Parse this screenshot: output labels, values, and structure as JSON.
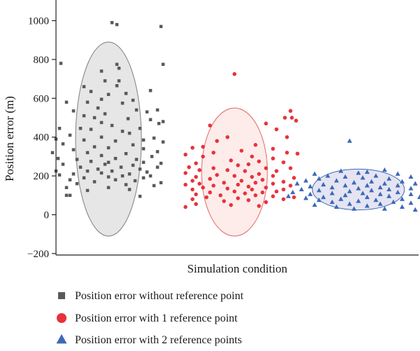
{
  "chart_data": {
    "type": "scatter",
    "title": "",
    "xlabel": "Simulation condition",
    "ylabel": "Position error (m)",
    "ylim": [
      -200,
      1050
    ],
    "yticks": [
      -200,
      0,
      200,
      400,
      600,
      800,
      1000
    ],
    "grid": false,
    "legend_position": "bottom",
    "series": [
      {
        "name": "Position error without reference point",
        "marker": "square",
        "color": "#595959",
        "ellipse": {
          "center": [
            0.0,
            390
          ],
          "radius_x": 0.47,
          "radius_y": 500,
          "fill": "#e6e6e6",
          "stroke": "#7f7f7f"
        },
        "points": [
          [
            0.05,
            990
          ],
          [
            0.12,
            980
          ],
          [
            0.75,
            970
          ],
          [
            -0.68,
            780
          ],
          [
            0.78,
            775
          ],
          [
            0.12,
            775
          ],
          [
            0.15,
            755
          ],
          [
            -0.1,
            740
          ],
          [
            -0.05,
            690
          ],
          [
            0.15,
            690
          ],
          [
            -0.35,
            660
          ],
          [
            0.12,
            665
          ],
          [
            0.6,
            640
          ],
          [
            -0.25,
            635
          ],
          [
            0.0,
            620
          ],
          [
            0.25,
            625
          ],
          [
            -0.1,
            595
          ],
          [
            0.35,
            590
          ],
          [
            -0.6,
            580
          ],
          [
            -0.3,
            580
          ],
          [
            0.2,
            575
          ],
          [
            -0.15,
            550
          ],
          [
            0.4,
            540
          ],
          [
            -0.5,
            535
          ],
          [
            -0.05,
            520
          ],
          [
            0.55,
            530
          ],
          [
            0.7,
            540
          ],
          [
            -0.35,
            510
          ],
          [
            -0.2,
            500
          ],
          [
            0.6,
            490
          ],
          [
            0.28,
            495
          ],
          [
            -0.1,
            475
          ],
          [
            0.78,
            480
          ],
          [
            0.05,
            460
          ],
          [
            0.72,
            470
          ],
          [
            -0.7,
            445
          ],
          [
            -0.4,
            445
          ],
          [
            0.45,
            445
          ],
          [
            -0.25,
            440
          ],
          [
            0.2,
            430
          ],
          [
            -0.55,
            410
          ],
          [
            0.3,
            420
          ],
          [
            -0.1,
            400
          ],
          [
            0.65,
            395
          ],
          [
            -0.75,
            390
          ],
          [
            -0.35,
            385
          ],
          [
            0.1,
            380
          ],
          [
            0.5,
            385
          ],
          [
            0.78,
            375
          ],
          [
            -0.65,
            365
          ],
          [
            0.35,
            360
          ],
          [
            -0.2,
            350
          ],
          [
            0.0,
            345
          ],
          [
            -0.5,
            335
          ],
          [
            0.5,
            340
          ],
          [
            0.7,
            325
          ],
          [
            -0.8,
            320
          ],
          [
            -0.3,
            320
          ],
          [
            0.25,
            315
          ],
          [
            -0.1,
            305
          ],
          [
            0.62,
            300
          ],
          [
            -0.72,
            290
          ],
          [
            0.1,
            290
          ],
          [
            0.4,
            285
          ],
          [
            -0.45,
            285
          ],
          [
            -0.25,
            275
          ],
          [
            0.0,
            270
          ],
          [
            0.5,
            270
          ],
          [
            0.75,
            265
          ],
          [
            -0.65,
            260
          ],
          [
            -0.05,
            260
          ],
          [
            0.35,
            255
          ],
          [
            -0.4,
            245
          ],
          [
            0.18,
            245
          ],
          [
            0.7,
            245
          ],
          [
            -0.15,
            235
          ],
          [
            0.45,
            235
          ],
          [
            -0.75,
            225
          ],
          [
            -0.3,
            225
          ],
          [
            0.05,
            225
          ],
          [
            0.55,
            220
          ],
          [
            -0.5,
            210
          ],
          [
            -0.1,
            215
          ],
          [
            0.3,
            210
          ],
          [
            -0.7,
            205
          ],
          [
            0.2,
            200
          ],
          [
            0.6,
            200
          ],
          [
            -0.35,
            190
          ],
          [
            0.0,
            195
          ],
          [
            0.5,
            190
          ],
          [
            -0.55,
            180
          ],
          [
            0.1,
            180
          ],
          [
            0.38,
            175
          ],
          [
            -0.2,
            170
          ],
          [
            0.75,
            165
          ],
          [
            -0.45,
            160
          ],
          [
            0.25,
            155
          ],
          [
            0.65,
            150
          ],
          [
            -0.6,
            140
          ],
          [
            0.0,
            140
          ],
          [
            -0.3,
            125
          ],
          [
            0.3,
            130
          ],
          [
            -0.6,
            100
          ],
          [
            -0.55,
            100
          ],
          [
            0.45,
            95
          ]
        ]
      },
      {
        "name": "Position error with 1 reference point",
        "marker": "circle",
        "color": "#e8313a",
        "ellipse": {
          "center": [
            0.0,
            220
          ],
          "radius_x": 0.47,
          "radius_y": 330,
          "fill": "#fdecea",
          "stroke": "#e06666"
        },
        "points": [
          [
            0.0,
            725
          ],
          [
            0.8,
            535
          ],
          [
            0.82,
            500
          ],
          [
            0.72,
            500
          ],
          [
            0.88,
            485
          ],
          [
            0.45,
            470
          ],
          [
            -0.35,
            460
          ],
          [
            0.6,
            440
          ],
          [
            -0.1,
            400
          ],
          [
            0.75,
            400
          ],
          [
            -0.25,
            380
          ],
          [
            0.3,
            360
          ],
          [
            -0.45,
            350
          ],
          [
            -0.6,
            345
          ],
          [
            0.55,
            340
          ],
          [
            0.1,
            330
          ],
          [
            -0.3,
            320
          ],
          [
            0.75,
            320
          ],
          [
            0.9,
            315
          ],
          [
            -0.7,
            310
          ],
          [
            0.25,
            300
          ],
          [
            -0.45,
            300
          ],
          [
            0.55,
            290
          ],
          [
            -0.05,
            280
          ],
          [
            0.35,
            275
          ],
          [
            0.7,
            270
          ],
          [
            -0.55,
            265
          ],
          [
            0.2,
            260
          ],
          [
            0.05,
            255
          ],
          [
            -0.65,
            245
          ],
          [
            0.45,
            240
          ],
          [
            -0.3,
            240
          ],
          [
            0.8,
            240
          ],
          [
            -0.5,
            230
          ],
          [
            -0.1,
            230
          ],
          [
            0.6,
            225
          ],
          [
            0.15,
            225
          ],
          [
            -0.7,
            215
          ],
          [
            0.35,
            210
          ],
          [
            -0.25,
            205
          ],
          [
            0.55,
            200
          ],
          [
            0.0,
            200
          ],
          [
            -0.55,
            195
          ],
          [
            0.25,
            195
          ],
          [
            0.85,
            190
          ],
          [
            -0.35,
            185
          ],
          [
            0.4,
            180
          ],
          [
            -0.6,
            175
          ],
          [
            0.1,
            175
          ],
          [
            0.7,
            170
          ],
          [
            -0.15,
            165
          ],
          [
            0.3,
            165
          ],
          [
            -0.5,
            160
          ],
          [
            0.55,
            160
          ],
          [
            -0.7,
            155
          ],
          [
            0.05,
            155
          ],
          [
            0.8,
            150
          ],
          [
            -0.3,
            150
          ],
          [
            0.2,
            145
          ],
          [
            0.45,
            140
          ],
          [
            -0.45,
            140
          ],
          [
            0.7,
            130
          ],
          [
            -0.1,
            135
          ],
          [
            -0.6,
            130
          ],
          [
            0.25,
            130
          ],
          [
            0.0,
            120
          ],
          [
            0.6,
            120
          ],
          [
            -0.35,
            115
          ],
          [
            0.4,
            115
          ],
          [
            0.15,
            110
          ],
          [
            -0.55,
            105
          ],
          [
            0.3,
            100
          ],
          [
            -0.2,
            100
          ],
          [
            0.55,
            95
          ],
          [
            0.85,
            90
          ],
          [
            -0.4,
            90
          ],
          [
            0.05,
            85
          ],
          [
            0.7,
            80
          ],
          [
            -0.6,
            80
          ],
          [
            0.2,
            75
          ],
          [
            -0.15,
            70
          ],
          [
            0.45,
            65
          ],
          [
            -0.55,
            55
          ],
          [
            -0.05,
            50
          ],
          [
            0.35,
            45
          ],
          [
            -0.7,
            40
          ]
        ]
      },
      {
        "name": "Position error with 2 reference points",
        "marker": "triangle",
        "color": "#3d69b8",
        "ellipse": {
          "center": [
            0.0,
            130
          ],
          "radius_x": 0.47,
          "radius_y": 105,
          "fill": "#e4e4f2",
          "stroke": "#3d69b8"
        },
        "points": [
          [
            -0.1,
            380
          ],
          [
            0.3,
            230
          ],
          [
            -0.2,
            225
          ],
          [
            0.1,
            220
          ],
          [
            -0.5,
            210
          ],
          [
            0.0,
            215
          ],
          [
            0.45,
            210
          ],
          [
            -0.35,
            200
          ],
          [
            0.2,
            200
          ],
          [
            -0.15,
            195
          ],
          [
            0.6,
            195
          ],
          [
            0.05,
            190
          ],
          [
            -0.45,
            185
          ],
          [
            0.35,
            185
          ],
          [
            -0.6,
            175
          ],
          [
            0.75,
            180
          ],
          [
            -0.25,
            175
          ],
          [
            0.15,
            170
          ],
          [
            0.5,
            170
          ],
          [
            -0.05,
            165
          ],
          [
            -0.7,
            160
          ],
          [
            0.3,
            160
          ],
          [
            0.65,
            160
          ],
          [
            -0.4,
            155
          ],
          [
            0.1,
            150
          ],
          [
            -0.15,
            150
          ],
          [
            0.45,
            150
          ],
          [
            -0.55,
            145
          ],
          [
            0.8,
            145
          ],
          [
            0.25,
            140
          ],
          [
            -0.3,
            140
          ],
          [
            0.0,
            135
          ],
          [
            -0.65,
            130
          ],
          [
            0.6,
            135
          ],
          [
            0.35,
            130
          ],
          [
            -0.45,
            125
          ],
          [
            0.15,
            125
          ],
          [
            -0.1,
            120
          ],
          [
            0.75,
            120
          ],
          [
            -0.75,
            115
          ],
          [
            0.45,
            115
          ],
          [
            -0.3,
            110
          ],
          [
            0.05,
            110
          ],
          [
            0.25,
            105
          ],
          [
            -0.55,
            105
          ],
          [
            0.6,
            105
          ],
          [
            -0.15,
            100
          ],
          [
            0.85,
            100
          ],
          [
            -0.8,
            95
          ],
          [
            0.35,
            95
          ],
          [
            -0.4,
            90
          ],
          [
            0.1,
            90
          ],
          [
            0.7,
            90
          ],
          [
            -0.6,
            85
          ],
          [
            -0.2,
            80
          ],
          [
            0.5,
            80
          ],
          [
            0.2,
            75
          ],
          [
            -0.45,
            75
          ],
          [
            0.0,
            70
          ],
          [
            0.8,
            70
          ],
          [
            -0.3,
            65
          ],
          [
            0.4,
            65
          ],
          [
            0.6,
            60
          ],
          [
            -0.1,
            55
          ],
          [
            0.25,
            55
          ],
          [
            -0.5,
            50
          ],
          [
            0.1,
            45
          ],
          [
            0.75,
            45
          ],
          [
            -0.25,
            40
          ],
          [
            0.5,
            40
          ],
          [
            0.3,
            30
          ],
          [
            -0.05,
            30
          ],
          [
            0.65,
            25
          ]
        ]
      }
    ]
  }
}
